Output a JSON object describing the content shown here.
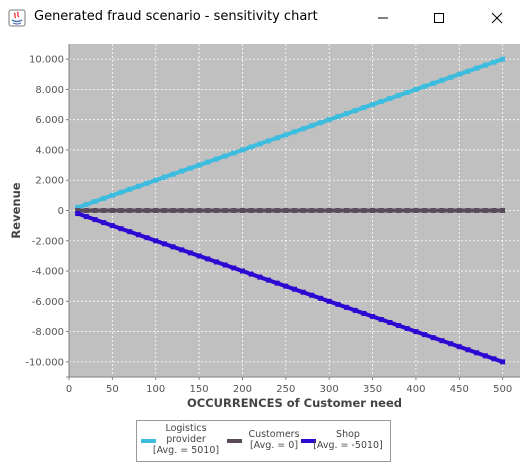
{
  "window": {
    "title": "Generated fraud scenario - sensitivity chart",
    "minimize_icon": "minimize-icon",
    "maximize_icon": "maximize-icon",
    "close_icon": "close-icon"
  },
  "chart_data": {
    "type": "line",
    "xlabel": "OCCURRENCES of Customer need",
    "ylabel": "Revenue",
    "xlim": [
      0,
      520
    ],
    "ylim": [
      -11000,
      11000
    ],
    "x_ticks": [
      0,
      50,
      100,
      150,
      200,
      250,
      300,
      350,
      400,
      450,
      500
    ],
    "y_ticks": [
      10000,
      8000,
      6000,
      4000,
      2000,
      0,
      -2000,
      -4000,
      -6000,
      -8000,
      -10000
    ],
    "x_tick_labels": [
      "0",
      "50",
      "100",
      "150",
      "200",
      "250",
      "300",
      "350",
      "400",
      "450",
      "500"
    ],
    "y_tick_labels": [
      "10.000",
      "8.000",
      "6.000",
      "4.000",
      "2.000",
      "0",
      "-2.000",
      "-4.000",
      "-6.000",
      "-8.000",
      "-10.000"
    ],
    "grid": true,
    "background": "#c0c0c0",
    "legend_position": "bottom",
    "series": [
      {
        "name": "Logistics provider",
        "legend_text": "Logistics\nprovider\n[Avg. = 5010]",
        "color": "#3cbcde",
        "x": [
          10,
          500
        ],
        "y": [
          200,
          10000
        ]
      },
      {
        "name": "Customers",
        "legend_text": "Customers\n[Avg. = 0]",
        "color": "#5a4a5a",
        "x": [
          10,
          500
        ],
        "y": [
          0,
          0
        ]
      },
      {
        "name": "Shop",
        "legend_text": "Shop\n[Avg. = -5010]",
        "color": "#2c08d2",
        "x": [
          10,
          500
        ],
        "y": [
          -200,
          -10000
        ]
      }
    ]
  }
}
